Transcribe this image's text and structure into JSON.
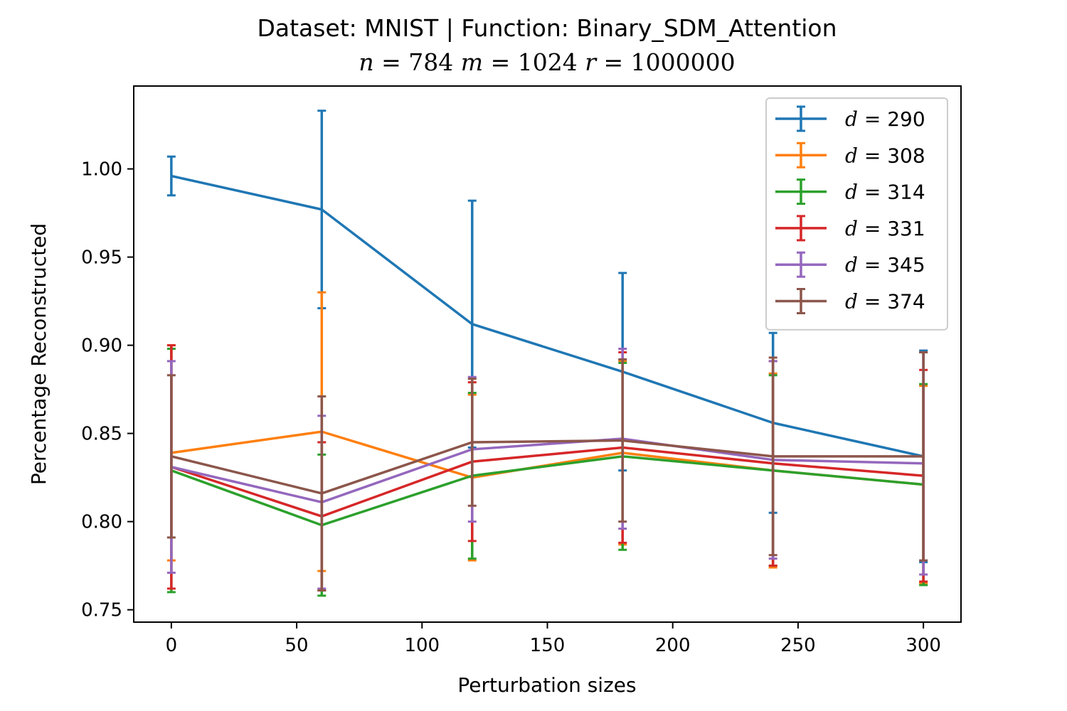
{
  "chart_data": {
    "type": "line",
    "title": "Dataset: MNIST | Function: Binary_SDM_Attention",
    "subtitle": "n = 784 m = 1024 r = 1000000",
    "xlabel": "Perturbation sizes",
    "ylabel": "Percentage Reconstructed",
    "x": [
      0,
      60,
      120,
      180,
      240,
      300
    ],
    "xlim": [
      -15,
      315
    ],
    "ylim": [
      0.743,
      1.047
    ],
    "xticks": [
      "0",
      "50",
      "100",
      "150",
      "200",
      "250",
      "300"
    ],
    "yticks": [
      "0.75",
      "0.80",
      "0.85",
      "0.90",
      "0.95",
      "1.00"
    ],
    "legend_position": "top-right",
    "grid": false,
    "series": [
      {
        "name": "d = 290",
        "color": "#1f77b4",
        "values": [
          0.996,
          0.977,
          0.912,
          0.885,
          0.856,
          0.837
        ],
        "errors": [
          0.011,
          0.056,
          0.07,
          0.056,
          0.051,
          0.06
        ]
      },
      {
        "name": "d = 308",
        "color": "#ff7f0e",
        "values": [
          0.839,
          0.851,
          0.825,
          0.839,
          0.829,
          0.821
        ],
        "errors": [
          0.061,
          0.079,
          0.047,
          0.052,
          0.055,
          0.056
        ]
      },
      {
        "name": "d = 314",
        "color": "#2ca02c",
        "values": [
          0.829,
          0.798,
          0.826,
          0.837,
          0.829,
          0.821
        ],
        "errors": [
          0.069,
          0.04,
          0.047,
          0.053,
          0.054,
          0.057
        ]
      },
      {
        "name": "d = 331",
        "color": "#d62728",
        "values": [
          0.831,
          0.803,
          0.834,
          0.842,
          0.833,
          0.826
        ],
        "errors": [
          0.069,
          0.042,
          0.045,
          0.054,
          0.058,
          0.06
        ]
      },
      {
        "name": "d = 345",
        "color": "#9467bd",
        "values": [
          0.831,
          0.811,
          0.841,
          0.847,
          0.835,
          0.833
        ],
        "errors": [
          0.06,
          0.049,
          0.041,
          0.051,
          0.056,
          0.063
        ]
      },
      {
        "name": "d = 374",
        "color": "#8c564b",
        "values": [
          0.837,
          0.816,
          0.845,
          0.846,
          0.837,
          0.837
        ],
        "errors": [
          0.046,
          0.055,
          0.036,
          0.046,
          0.056,
          0.059
        ]
      }
    ]
  }
}
